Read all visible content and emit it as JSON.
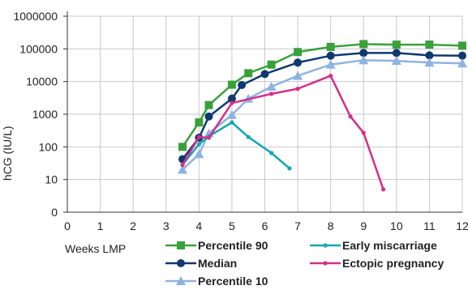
{
  "chart_data": {
    "type": "line",
    "title": "",
    "xlabel": "Weeks LMP",
    "ylabel": "hCG (IU/L)",
    "y_scale": "log",
    "x_ticks": [
      "0",
      "1",
      "2",
      "3",
      "4",
      "5",
      "6",
      "7",
      "8",
      "9",
      "10",
      "11",
      "12"
    ],
    "y_ticks": [
      {
        "value": 1,
        "label": "0"
      },
      {
        "value": 10,
        "label": "10"
      },
      {
        "value": 100,
        "label": "100"
      },
      {
        "value": 1000,
        "label": "1000"
      },
      {
        "value": 10000,
        "label": "10000"
      },
      {
        "value": 100000,
        "label": "100000"
      },
      {
        "value": 1000000,
        "label": "1000000"
      }
    ],
    "xlim": [
      0,
      12
    ],
    "ylim": [
      1,
      1000000
    ],
    "grid": "both",
    "legend_position": "bottom",
    "series": [
      {
        "name": "Percentile 90",
        "color": "#3aa03a",
        "marker": "square",
        "points": [
          [
            3.5,
            100
          ],
          [
            4,
            560
          ],
          [
            4.3,
            1900
          ],
          [
            5,
            8000
          ],
          [
            5.5,
            18000
          ],
          [
            6.2,
            33000
          ],
          [
            7,
            80000
          ],
          [
            8,
            115000
          ],
          [
            9,
            140000
          ],
          [
            10,
            135000
          ],
          [
            11,
            135000
          ],
          [
            12,
            125000
          ]
        ]
      },
      {
        "name": "Median",
        "color": "#10386e",
        "marker": "circle",
        "points": [
          [
            3.5,
            42
          ],
          [
            4,
            190
          ],
          [
            4.3,
            850
          ],
          [
            5,
            3000
          ],
          [
            5.3,
            7800
          ],
          [
            6,
            17000
          ],
          [
            7,
            38000
          ],
          [
            8,
            62000
          ],
          [
            9,
            75000
          ],
          [
            10,
            75000
          ],
          [
            11,
            63000
          ],
          [
            12,
            62000
          ]
        ]
      },
      {
        "name": "Percentile 10",
        "color": "#8fb3e0",
        "marker": "triangle",
        "points": [
          [
            3.5,
            20
          ],
          [
            4,
            60
          ],
          [
            4.3,
            260
          ],
          [
            5,
            950
          ],
          [
            5.5,
            3000
          ],
          [
            6.2,
            7000
          ],
          [
            7,
            15000
          ],
          [
            8,
            33000
          ],
          [
            9,
            45000
          ],
          [
            10,
            43000
          ],
          [
            11,
            38000
          ],
          [
            12,
            36000
          ]
        ]
      },
      {
        "name": "Early miscarriage",
        "color": "#12a8b0",
        "marker": "dot",
        "points": [
          [
            3.5,
            28
          ],
          [
            4,
            120
          ],
          [
            4.3,
            210
          ],
          [
            5,
            560
          ],
          [
            5.5,
            200
          ],
          [
            6.2,
            65
          ],
          [
            6.75,
            22
          ]
        ]
      },
      {
        "name": "Ectopic pregnancy",
        "color": "#d42f8a",
        "marker": "dot",
        "points": [
          [
            3.5,
            28
          ],
          [
            4,
            200
          ],
          [
            4.3,
            190
          ],
          [
            5,
            2200
          ],
          [
            6.2,
            4200
          ],
          [
            7,
            6000
          ],
          [
            8,
            15000
          ],
          [
            8.6,
            850
          ],
          [
            9,
            270
          ],
          [
            9.6,
            5
          ]
        ]
      }
    ]
  }
}
